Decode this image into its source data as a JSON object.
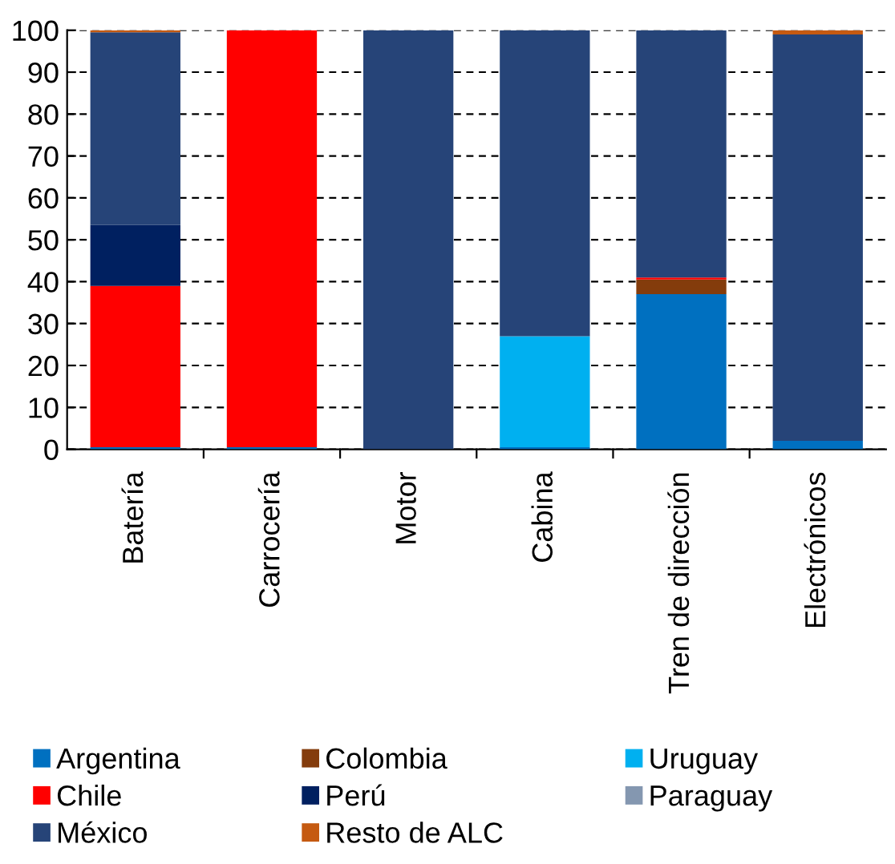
{
  "chart_data": {
    "type": "bar",
    "stacked": true,
    "categories": [
      "Batería",
      "Carrocería",
      "Motor",
      "Cabina",
      "Tren de dirección",
      "Electrónicos"
    ],
    "series": [
      {
        "name": "Argentina",
        "color": "#0070c0",
        "values": [
          0.5,
          0.5,
          null,
          0.5,
          37,
          2
        ]
      },
      {
        "name": "Colombia",
        "color": "#843c0c",
        "values": [
          null,
          null,
          null,
          null,
          3.5,
          null
        ]
      },
      {
        "name": "Uruguay",
        "color": "#00b0f0",
        "values": [
          null,
          null,
          null,
          26.5,
          null,
          null
        ]
      },
      {
        "name": "Chile",
        "color": "#ff0000",
        "values": [
          38.5,
          99.5,
          null,
          null,
          0.5,
          null
        ]
      },
      {
        "name": "Perú",
        "color": "#002060",
        "values": [
          14.5,
          null,
          null,
          null,
          null,
          null
        ]
      },
      {
        "name": "Paraguay",
        "color": "#8497b0",
        "values": [
          null,
          null,
          null,
          null,
          null,
          null
        ]
      },
      {
        "name": "México",
        "color": "#264478",
        "values": [
          46,
          null,
          100,
          73,
          59,
          97
        ]
      },
      {
        "name": "Resto de ALC",
        "color": "#c55a11",
        "values": [
          0.5,
          null,
          null,
          null,
          null,
          1
        ]
      }
    ],
    "ylim": [
      0,
      100
    ],
    "yticks": [
      0,
      10,
      20,
      30,
      40,
      50,
      60,
      70,
      80,
      90,
      100
    ],
    "grid": "y",
    "legend": "bottom"
  }
}
